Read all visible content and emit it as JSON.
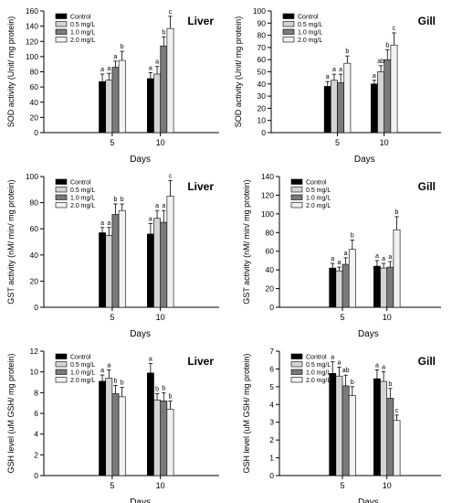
{
  "figure": {
    "colors": {
      "Control": "#000000",
      "0.5 mg/L": "#d4d4d4",
      "1.0 mg/L": "#7a7a7a",
      "2.0 mg/L": "#f2f2f2",
      "edge": "#000000"
    }
  },
  "chart_data": [
    {
      "type": "bar",
      "panel_label": "Liver",
      "ylabel": "SOD activity (Unit/ mg protein)",
      "xlabel": "Days",
      "ylim": [
        0,
        160
      ],
      "yticks": [
        0,
        20,
        40,
        60,
        80,
        100,
        120,
        140,
        160
      ],
      "categories": [
        "5",
        "10"
      ],
      "series": [
        {
          "name": "Control",
          "values": [
            67,
            71
          ],
          "errors": [
            10,
            8
          ],
          "letters": [
            "a",
            "a"
          ]
        },
        {
          "name": "0.5 mg/L",
          "values": [
            69,
            77
          ],
          "errors": [
            9,
            10
          ],
          "letters": [
            "a",
            "a"
          ]
        },
        {
          "name": "1.0 mg/L",
          "values": [
            86,
            114
          ],
          "errors": [
            8,
            12
          ],
          "letters": [
            "a",
            "b"
          ]
        },
        {
          "name": "2.0 mg/L",
          "values": [
            95,
            137
          ],
          "errors": [
            12,
            16
          ],
          "letters": [
            "b",
            "c"
          ]
        }
      ]
    },
    {
      "type": "bar",
      "panel_label": "Gill",
      "ylabel": "SOD activity (Unit/ mg protein)",
      "xlabel": "Days",
      "ylim": [
        0,
        100
      ],
      "yticks": [
        0,
        10,
        20,
        30,
        40,
        50,
        60,
        70,
        80,
        90,
        100
      ],
      "categories": [
        "5",
        "10"
      ],
      "series": [
        {
          "name": "Control",
          "values": [
            38,
            40
          ],
          "errors": [
            4,
            3
          ],
          "letters": [
            "a",
            "a"
          ]
        },
        {
          "name": "0.5 mg/L",
          "values": [
            43,
            50
          ],
          "errors": [
            5,
            5
          ],
          "letters": [
            "a",
            "ab"
          ]
        },
        {
          "name": "1.0 mg/L",
          "values": [
            41,
            60
          ],
          "errors": [
            7,
            8
          ],
          "letters": [
            "a",
            "b"
          ]
        },
        {
          "name": "2.0 mg/L",
          "values": [
            57,
            72
          ],
          "errors": [
            6,
            10
          ],
          "letters": [
            "b",
            "c"
          ]
        }
      ]
    },
    {
      "type": "bar",
      "panel_label": "Liver",
      "ylabel": "GST activity (nM/ min/ mg protein)",
      "xlabel": "Days",
      "ylim": [
        0,
        100
      ],
      "yticks": [
        0,
        20,
        40,
        60,
        80,
        100
      ],
      "categories": [
        "5",
        "10"
      ],
      "series": [
        {
          "name": "Control",
          "values": [
            57,
            56
          ],
          "errors": [
            4,
            8
          ],
          "letters": [
            "a",
            "a"
          ]
        },
        {
          "name": "0.5 mg/L",
          "values": [
            55,
            68
          ],
          "errors": [
            6,
            6
          ],
          "letters": [
            "a",
            "a"
          ]
        },
        {
          "name": "1.0 mg/L",
          "values": [
            71,
            65
          ],
          "errors": [
            8,
            9
          ],
          "letters": [
            "b",
            "a"
          ]
        },
        {
          "name": "2.0 mg/L",
          "values": [
            74,
            85
          ],
          "errors": [
            5,
            12
          ],
          "letters": [
            "b",
            "c"
          ]
        }
      ]
    },
    {
      "type": "bar",
      "panel_label": "Gill",
      "ylabel": "GST activity (nM/ min/ mg protein)",
      "xlabel": "Days",
      "ylim": [
        0,
        140
      ],
      "yticks": [
        0,
        20,
        40,
        60,
        80,
        100,
        120,
        140
      ],
      "categories": [
        "5",
        "10"
      ],
      "series": [
        {
          "name": "Control",
          "values": [
            42,
            44
          ],
          "errors": [
            5,
            6
          ],
          "letters": [
            "a",
            "a"
          ]
        },
        {
          "name": "0.5 mg/L",
          "values": [
            39,
            42
          ],
          "errors": [
            4,
            5
          ],
          "letters": [
            "a",
            "a"
          ]
        },
        {
          "name": "1.0 mg/L",
          "values": [
            46,
            43
          ],
          "errors": [
            7,
            6
          ],
          "letters": [
            "a",
            "a"
          ]
        },
        {
          "name": "2.0 mg/L",
          "values": [
            62,
            83
          ],
          "errors": [
            10,
            14
          ],
          "letters": [
            "b",
            "b"
          ]
        }
      ]
    },
    {
      "type": "bar",
      "panel_label": "Liver",
      "ylabel": "GSH level (uM GSH/ mg protein)",
      "xlabel": "Days",
      "ylim": [
        0,
        12
      ],
      "yticks": [
        0,
        2,
        4,
        6,
        8,
        10,
        12
      ],
      "categories": [
        "5",
        "10"
      ],
      "series": [
        {
          "name": "Control",
          "values": [
            9.1,
            9.9
          ],
          "errors": [
            0.6,
            0.9
          ],
          "letters": [
            "a",
            "a"
          ]
        },
        {
          "name": "0.5 mg/L",
          "values": [
            9.4,
            7.3
          ],
          "errors": [
            0.8,
            0.6
          ],
          "letters": [
            "a",
            "b"
          ]
        },
        {
          "name": "1.0 mg/L",
          "values": [
            7.9,
            7.2
          ],
          "errors": [
            0.8,
            0.8
          ],
          "letters": [
            "b",
            "b"
          ]
        },
        {
          "name": "2.0 mg/L",
          "values": [
            7.6,
            6.4
          ],
          "errors": [
            0.9,
            0.8
          ],
          "letters": [
            "b",
            "b"
          ]
        }
      ]
    },
    {
      "type": "bar",
      "panel_label": "Gill",
      "ylabel": "GSH level (uM GSH/ mg protein)",
      "xlabel": "Days",
      "ylim": [
        0,
        7
      ],
      "yticks": [
        0,
        1,
        2,
        3,
        4,
        5,
        6,
        7
      ],
      "categories": [
        "5",
        "10"
      ],
      "series": [
        {
          "name": "Control",
          "values": [
            5.75,
            5.45
          ],
          "errors": [
            0.65,
            0.5
          ],
          "letters": [
            "a",
            "a"
          ]
        },
        {
          "name": "0.5 mg/L",
          "values": [
            5.6,
            5.3
          ],
          "errors": [
            0.5,
            0.55
          ],
          "letters": [
            "a",
            "a"
          ]
        },
        {
          "name": "1.0 mg/L",
          "values": [
            5.05,
            4.35
          ],
          "errors": [
            0.6,
            0.55
          ],
          "letters": [
            "ab",
            "b"
          ]
        },
        {
          "name": "2.0 mg/L",
          "values": [
            4.5,
            3.1
          ],
          "errors": [
            0.5,
            0.3
          ],
          "letters": [
            "b",
            "c"
          ]
        }
      ]
    }
  ]
}
